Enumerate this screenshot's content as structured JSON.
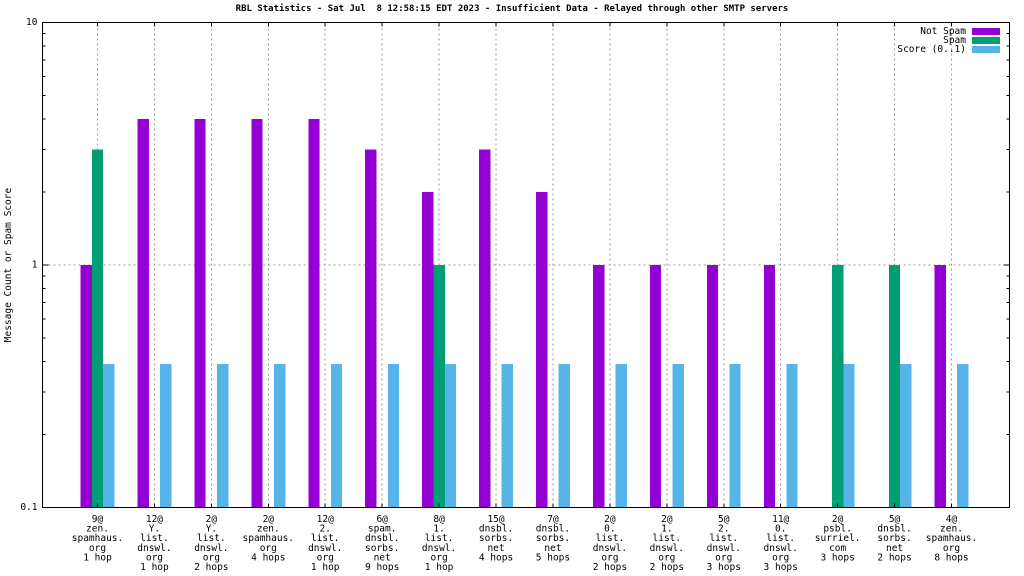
{
  "chart_data": {
    "type": "bar",
    "title": "RBL Statistics - Sat Jul  8 12:58:15 EDT 2023 - Insufficient Data - Relayed through other SMTP servers",
    "ylabel": "Message Count or Spam Score",
    "y_scale": "log",
    "ylim": [
      0.1,
      10
    ],
    "y_ticks": [
      {
        "label": "0.1",
        "value": 0.1
      },
      {
        "label": "1",
        "value": 1
      },
      {
        "label": "10",
        "value": 10
      }
    ],
    "grid": {
      "vertical_at_each_category": true,
      "horizontal_at": [
        1
      ],
      "style": "dashed",
      "color": "#9a9a9a"
    },
    "legend_position": "top-right",
    "categories": [
      [
        "9@",
        "zen.",
        "spamhaus.",
        "org",
        "1 hop"
      ],
      [
        "12@",
        "Y.",
        "list.",
        "dnswl.",
        "org",
        "1 hop"
      ],
      [
        "2@",
        "Y.",
        "list.",
        "dnswl.",
        "org",
        "2 hops"
      ],
      [
        "2@",
        "zen.",
        "spamhaus.",
        "org",
        "4 hops"
      ],
      [
        "12@",
        "2.",
        "list.",
        "dnswl.",
        "org",
        "1 hop"
      ],
      [
        "6@",
        "spam.",
        "dnsbl.",
        "sorbs.",
        "net",
        "9 hops"
      ],
      [
        "8@",
        "1.",
        "list.",
        "dnswl.",
        "org",
        "1 hop"
      ],
      [
        "15@",
        "dnsbl.",
        "sorbs.",
        "net",
        "4 hops"
      ],
      [
        "7@",
        "dnsbl.",
        "sorbs.",
        "net",
        "5 hops"
      ],
      [
        "2@",
        "0.",
        "list.",
        "dnswl.",
        "org",
        "2 hops"
      ],
      [
        "2@",
        "1.",
        "list.",
        "dnswl.",
        "org",
        "2 hops"
      ],
      [
        "5@",
        "2.",
        "list.",
        "dnswl.",
        "org",
        "3 hops"
      ],
      [
        "11@",
        "0.",
        "list.",
        "dnswl.",
        "org",
        "3 hops"
      ],
      [
        "2@",
        "psbl.",
        "surriel.",
        "com",
        "3 hops"
      ],
      [
        "5@",
        "dnsbl.",
        "sorbs.",
        "net",
        "2 hops"
      ],
      [
        "4@",
        "zen.",
        "spamhaus.",
        "org",
        "8 hops"
      ]
    ],
    "series": [
      {
        "name": "Not Spam",
        "color": "#9400D3",
        "values": [
          1,
          4,
          4,
          4,
          4,
          3,
          2,
          3,
          2,
          1,
          1,
          1,
          1,
          null,
          null,
          1
        ]
      },
      {
        "name": "Spam",
        "color": "#009E73",
        "values": [
          3,
          null,
          null,
          null,
          null,
          null,
          1,
          null,
          null,
          null,
          null,
          null,
          null,
          1,
          1,
          null
        ]
      },
      {
        "name": "Score (0..1)",
        "color": "#56B4E9",
        "values": [
          0.39,
          0.39,
          0.39,
          0.39,
          0.39,
          0.39,
          0.39,
          0.39,
          0.39,
          0.39,
          0.39,
          0.39,
          0.39,
          0.39,
          0.39,
          0.39
        ]
      }
    ]
  }
}
